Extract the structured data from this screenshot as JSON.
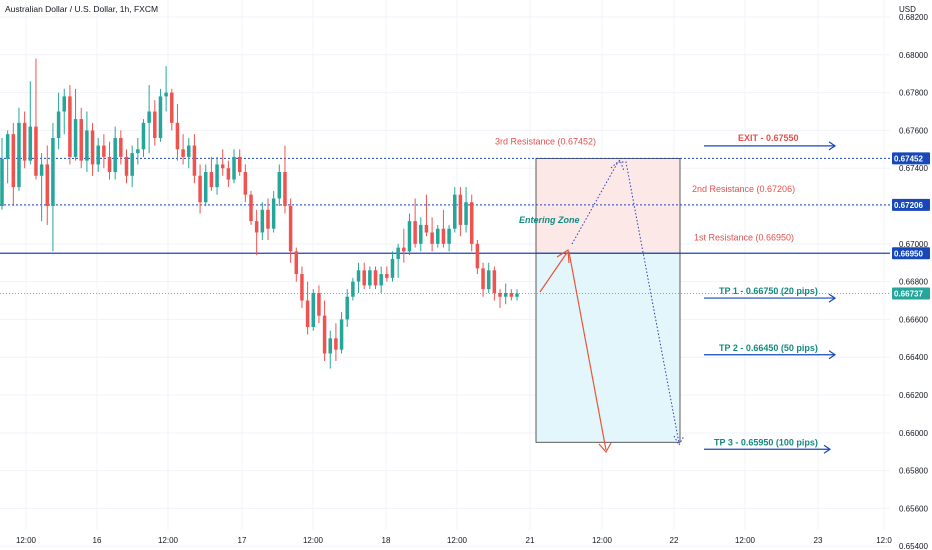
{
  "colors": {
    "up": "#26a69a",
    "down": "#ef5350",
    "blue": "#1848b8",
    "grid": "#f0f3fa",
    "red_zone": "#fde8e8",
    "cyan_zone": "#e3f6fb",
    "current_line": "#26a69a",
    "tp_text": "#138a80",
    "resistance_text": "#e0524f",
    "exit_text": "#e0524f",
    "red_arrow": "#e8553a",
    "dotted_blue": "#2a3fc0"
  },
  "header": {
    "symbol": "Australian Dollar / U.S. Dollar, 1h, FXCM",
    "currency": "USD"
  },
  "chart_data": {
    "type": "candlestick",
    "title": "Australian Dollar / U.S. Dollar, 1h, FXCM",
    "ylabel": "USD",
    "ylim": [
      0.6538,
      0.6829
    ],
    "y_ticks": [
      "0.68200",
      "0.68000",
      "0.67800",
      "0.67600",
      "0.67400",
      "0.67200",
      "0.67000",
      "0.66800",
      "0.66600",
      "0.66400",
      "0.66200",
      "0.66000",
      "0.65800",
      "0.65600",
      "0.65400"
    ],
    "x_ticks": [
      "12:00",
      "16",
      "12:00",
      "17",
      "12:00",
      "18",
      "12:00",
      "21",
      "12:00",
      "22",
      "12:00",
      "23",
      "12:0"
    ],
    "grid": true,
    "candles": [
      [
        0.672,
        0.6756,
        0.6718,
        0.6745
      ],
      [
        0.6745,
        0.676,
        0.6732,
        0.6758
      ],
      [
        0.6758,
        0.6764,
        0.672,
        0.673
      ],
      [
        0.673,
        0.6772,
        0.6728,
        0.6764
      ],
      [
        0.6764,
        0.677,
        0.674,
        0.6744
      ],
      [
        0.6744,
        0.6786,
        0.6742,
        0.6762
      ],
      [
        0.6762,
        0.6798,
        0.6734,
        0.6736
      ],
      [
        0.6736,
        0.6748,
        0.6712,
        0.6742
      ],
      [
        0.6742,
        0.6752,
        0.671,
        0.672
      ],
      [
        0.672,
        0.6764,
        0.6696,
        0.6756
      ],
      [
        0.6756,
        0.678,
        0.675,
        0.677
      ],
      [
        0.677,
        0.6782,
        0.6758,
        0.6778
      ],
      [
        0.6778,
        0.6784,
        0.6742,
        0.6746
      ],
      [
        0.6746,
        0.6782,
        0.6744,
        0.6766
      ],
      [
        0.6766,
        0.6772,
        0.674,
        0.6744
      ],
      [
        0.6744,
        0.677,
        0.6738,
        0.676
      ],
      [
        0.676,
        0.6764,
        0.6736,
        0.6742
      ],
      [
        0.6742,
        0.6756,
        0.6738,
        0.6752
      ],
      [
        0.6752,
        0.6758,
        0.674,
        0.6746
      ],
      [
        0.6746,
        0.6754,
        0.6734,
        0.6738
      ],
      [
        0.6738,
        0.6762,
        0.6734,
        0.6756
      ],
      [
        0.6756,
        0.676,
        0.6742,
        0.6746
      ],
      [
        0.6746,
        0.675,
        0.6732,
        0.6736
      ],
      [
        0.6736,
        0.6752,
        0.673,
        0.6748
      ],
      [
        0.6748,
        0.6756,
        0.6742,
        0.675
      ],
      [
        0.675,
        0.6766,
        0.6746,
        0.6764
      ],
      [
        0.6764,
        0.6784,
        0.6748,
        0.677
      ],
      [
        0.677,
        0.6776,
        0.6752,
        0.6756
      ],
      [
        0.6756,
        0.6782,
        0.6754,
        0.6778
      ],
      [
        0.6778,
        0.6794,
        0.677,
        0.678
      ],
      [
        0.678,
        0.6782,
        0.676,
        0.6764
      ],
      [
        0.6764,
        0.6774,
        0.6744,
        0.675
      ],
      [
        0.675,
        0.6758,
        0.6742,
        0.6746
      ],
      [
        0.6746,
        0.6756,
        0.674,
        0.6752
      ],
      [
        0.6752,
        0.6758,
        0.6732,
        0.6736
      ],
      [
        0.6736,
        0.6742,
        0.6716,
        0.6722
      ],
      [
        0.6722,
        0.6742,
        0.672,
        0.6738
      ],
      [
        0.6738,
        0.6746,
        0.6728,
        0.673
      ],
      [
        0.673,
        0.6746,
        0.6726,
        0.6742
      ],
      [
        0.6742,
        0.675,
        0.6736,
        0.674
      ],
      [
        0.674,
        0.6744,
        0.673,
        0.6734
      ],
      [
        0.6734,
        0.675,
        0.6732,
        0.6746
      ],
      [
        0.6746,
        0.675,
        0.6736,
        0.6738
      ],
      [
        0.6738,
        0.6742,
        0.6722,
        0.6726
      ],
      [
        0.6726,
        0.6728,
        0.671,
        0.6712
      ],
      [
        0.6712,
        0.6718,
        0.6694,
        0.6706
      ],
      [
        0.6706,
        0.6722,
        0.6702,
        0.6718
      ],
      [
        0.6718,
        0.6724,
        0.6702,
        0.6708
      ],
      [
        0.6708,
        0.6728,
        0.6706,
        0.6724
      ],
      [
        0.6724,
        0.6742,
        0.672,
        0.6738
      ],
      [
        0.6738,
        0.6752,
        0.6716,
        0.672
      ],
      [
        0.672,
        0.6724,
        0.669,
        0.6696
      ],
      [
        0.6696,
        0.6698,
        0.668,
        0.6684
      ],
      [
        0.6684,
        0.6688,
        0.6666,
        0.667
      ],
      [
        0.667,
        0.668,
        0.6652,
        0.6656
      ],
      [
        0.6656,
        0.6676,
        0.6654,
        0.6674
      ],
      [
        0.6674,
        0.6678,
        0.6658,
        0.6662
      ],
      [
        0.6662,
        0.667,
        0.6638,
        0.6642
      ],
      [
        0.6642,
        0.6654,
        0.6634,
        0.665
      ],
      [
        0.665,
        0.6658,
        0.6638,
        0.6644
      ],
      [
        0.6644,
        0.6664,
        0.6642,
        0.666
      ],
      [
        0.666,
        0.6676,
        0.6656,
        0.6672
      ],
      [
        0.6672,
        0.6682,
        0.667,
        0.668
      ],
      [
        0.668,
        0.669,
        0.6674,
        0.6686
      ],
      [
        0.6686,
        0.669,
        0.6676,
        0.6678
      ],
      [
        0.6678,
        0.6688,
        0.6676,
        0.6686
      ],
      [
        0.6686,
        0.6688,
        0.6676,
        0.6678
      ],
      [
        0.6678,
        0.6688,
        0.6674,
        0.6684
      ],
      [
        0.6684,
        0.6688,
        0.668,
        0.6682
      ],
      [
        0.6682,
        0.6696,
        0.668,
        0.6692
      ],
      [
        0.6692,
        0.67,
        0.6682,
        0.6698
      ],
      [
        0.6698,
        0.6708,
        0.669,
        0.6696
      ],
      [
        0.6696,
        0.6716,
        0.6694,
        0.6712
      ],
      [
        0.6712,
        0.6724,
        0.6698,
        0.67
      ],
      [
        0.67,
        0.6714,
        0.6696,
        0.671
      ],
      [
        0.671,
        0.6726,
        0.6704,
        0.6706
      ],
      [
        0.6706,
        0.6714,
        0.6696,
        0.67
      ],
      [
        0.67,
        0.671,
        0.6698,
        0.6708
      ],
      [
        0.6708,
        0.6718,
        0.6698,
        0.67
      ],
      [
        0.67,
        0.671,
        0.6696,
        0.6708
      ],
      [
        0.6708,
        0.673,
        0.6706,
        0.6726
      ],
      [
        0.6726,
        0.673,
        0.6704,
        0.671
      ],
      [
        0.671,
        0.673,
        0.6706,
        0.6722
      ],
      [
        0.6722,
        0.6726,
        0.6696,
        0.67
      ],
      [
        0.67,
        0.6702,
        0.6684,
        0.6687
      ],
      [
        0.6687,
        0.669,
        0.6672,
        0.6676
      ],
      [
        0.6676,
        0.669,
        0.6674,
        0.6686
      ],
      [
        0.6686,
        0.6688,
        0.667,
        0.6674
      ],
      [
        0.6674,
        0.6676,
        0.6666,
        0.6672
      ],
      [
        0.6672,
        0.6679,
        0.6668,
        0.6674
      ],
      [
        0.6674,
        0.6676,
        0.667,
        0.6672
      ],
      [
        0.6672,
        0.6676,
        0.667,
        0.66737
      ]
    ]
  },
  "levels": {
    "exit": {
      "label": "EXIT - 0.67550",
      "price": 0.6755
    },
    "r3": {
      "label": "3rd Resistance (0.67452)",
      "price": 0.67452,
      "badge": "0.67452"
    },
    "r2": {
      "label": "2nd Resistance (0.67206)",
      "price": 0.67206,
      "badge": "0.67206"
    },
    "r1": {
      "label": "1st Resistance (0.66950)",
      "price": 0.6695,
      "badge": "0.66950"
    },
    "current": {
      "price": 0.66737,
      "badge": "0.66737"
    },
    "tp1": {
      "label": "TP 1 - 0.66750 (20 pips)",
      "price": 0.6675
    },
    "tp2": {
      "label": "TP 2 - 0.66450 (50 pips)",
      "price": 0.6645
    },
    "tp3": {
      "label": "TP 3 - 0.65950 (100 pips)",
      "price": 0.6595
    }
  },
  "zone": {
    "label": "Entering Zone",
    "top": 0.67452,
    "entry": 0.6695,
    "bottom": 0.6595
  }
}
